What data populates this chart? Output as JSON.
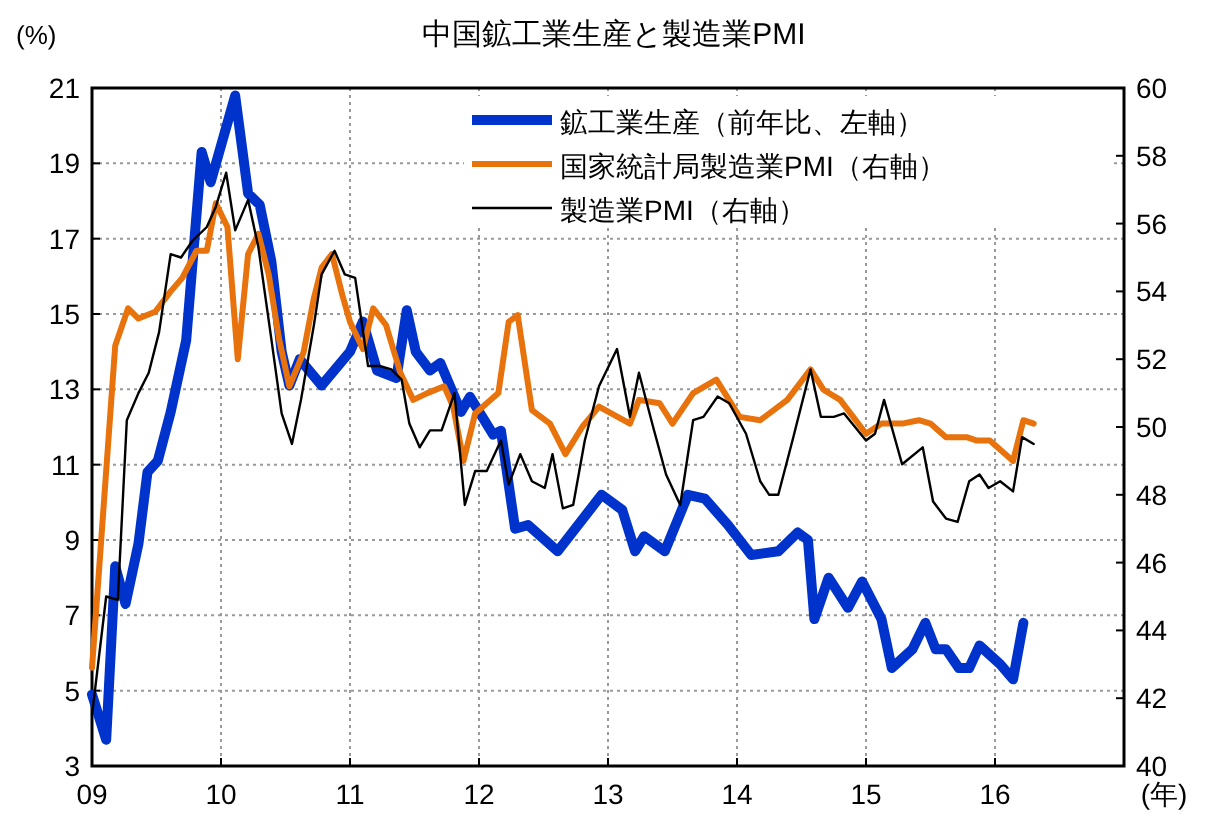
{
  "chart_data": {
    "type": "line",
    "title": "中国鉱工業生産と製造業PMI",
    "ylabel": "(%)",
    "xlabel": "(年)",
    "xlim": [
      2009,
      2017
    ],
    "xticks": [
      {
        "value": 2009,
        "label": "09"
      },
      {
        "value": 2010,
        "label": "10"
      },
      {
        "value": 2011,
        "label": "11"
      },
      {
        "value": 2012,
        "label": "12"
      },
      {
        "value": 2013,
        "label": "13"
      },
      {
        "value": 2014,
        "label": "14"
      },
      {
        "value": 2015,
        "label": "15"
      },
      {
        "value": 2016,
        "label": "16"
      }
    ],
    "ylim": [
      3,
      21
    ],
    "yticks": [
      3,
      5,
      7,
      9,
      11,
      13,
      15,
      17,
      19,
      21
    ],
    "y2lim": [
      40,
      60
    ],
    "y2ticks": [
      40,
      42,
      44,
      46,
      48,
      50,
      52,
      54,
      56,
      58,
      60
    ],
    "grid": true,
    "legend": "top right",
    "series": [
      {
        "name": "鉱工業生産（前年比、左軸）",
        "color": "#0033cc",
        "x": [
          2009.0,
          2009.11,
          2009.18,
          2009.26,
          2009.36,
          2009.43,
          2009.51,
          2009.61,
          2009.73,
          2009.85,
          2009.92,
          2010.11,
          2010.21,
          2010.3,
          2010.39,
          2010.47,
          2010.53,
          2010.61,
          2010.78,
          2011.0,
          2011.1,
          2011.21,
          2011.36,
          2011.44,
          2011.51,
          2011.62,
          2011.7,
          2011.86,
          2011.93,
          2012.11,
          2012.17,
          2012.28,
          2012.38,
          2012.61,
          2012.95,
          2013.11,
          2013.21,
          2013.28,
          2013.44,
          2013.62,
          2013.75,
          2013.93,
          2014.11,
          2014.32,
          2014.47,
          2014.55,
          2014.6,
          2014.71,
          2014.86,
          2014.97,
          2015.12,
          2015.2,
          2015.36,
          2015.46,
          2015.54,
          2015.62,
          2015.72,
          2015.8,
          2015.88,
          2016.04,
          2016.14,
          2016.22
        ],
        "values": [
          4.9,
          3.7,
          8.3,
          7.3,
          8.9,
          10.8,
          11.1,
          12.4,
          14.3,
          19.3,
          18.5,
          20.8,
          18.2,
          17.9,
          16.4,
          14.0,
          13.1,
          13.8,
          13.1,
          14.0,
          14.8,
          13.5,
          13.3,
          15.1,
          14.0,
          13.5,
          13.7,
          12.4,
          12.8,
          11.8,
          11.9,
          9.3,
          9.4,
          8.7,
          10.2,
          9.8,
          8.7,
          9.1,
          8.7,
          10.2,
          10.1,
          9.4,
          8.6,
          8.7,
          9.2,
          9.0,
          6.9,
          8.0,
          7.2,
          7.9,
          6.9,
          5.6,
          6.1,
          6.8,
          6.1,
          6.1,
          5.6,
          5.6,
          6.2,
          5.7,
          5.3,
          6.8
        ]
      },
      {
        "name": "国家統計局製造業PMI（右軸）",
        "color": "#e8720c",
        "axis": "y2",
        "x": [
          2009.0,
          2009.18,
          2009.28,
          2009.36,
          2009.49,
          2009.61,
          2009.7,
          2009.81,
          2009.89,
          2009.96,
          2010.05,
          2010.13,
          2010.21,
          2010.29,
          2010.37,
          2010.45,
          2010.53,
          2010.64,
          2010.72,
          2010.78,
          2010.86,
          2010.94,
          2011.0,
          2011.1,
          2011.18,
          2011.28,
          2011.39,
          2011.49,
          2011.6,
          2011.73,
          2011.8,
          2011.88,
          2011.97,
          2012.15,
          2012.23,
          2012.3,
          2012.41,
          2012.55,
          2012.67,
          2012.8,
          2012.93,
          2013.17,
          2013.24,
          2013.4,
          2013.5,
          2013.66,
          2013.84,
          2014.02,
          2014.18,
          2014.39,
          2014.57,
          2014.67,
          2014.8,
          2015.0,
          2015.12,
          2015.28,
          2015.41,
          2015.5,
          2015.62,
          2015.78,
          2015.86,
          2015.96,
          2016.14,
          2016.22,
          2016.3
        ],
        "values": [
          42.9,
          52.4,
          53.5,
          53.2,
          53.4,
          54.0,
          54.4,
          55.2,
          55.2,
          56.6,
          55.9,
          52.0,
          55.1,
          55.7,
          54.5,
          52.6,
          51.2,
          52.2,
          53.8,
          54.7,
          55.1,
          53.9,
          53.1,
          52.3,
          53.5,
          53.0,
          51.6,
          50.8,
          51.0,
          51.2,
          50.6,
          49.0,
          50.4,
          51.0,
          53.1,
          53.3,
          50.5,
          50.1,
          49.2,
          50.0,
          50.6,
          50.1,
          50.8,
          50.7,
          50.1,
          51.0,
          51.4,
          50.3,
          50.2,
          50.8,
          51.7,
          51.1,
          50.8,
          49.8,
          50.1,
          50.1,
          50.2,
          50.1,
          49.7,
          49.7,
          49.6,
          49.6,
          49.0,
          50.2,
          50.1
        ]
      },
      {
        "name": "製造業PMI（右軸）",
        "color": "#000000",
        "axis": "y2",
        "x": [
          2009.0,
          2009.11,
          2009.2,
          2009.27,
          2009.36,
          2009.44,
          2009.52,
          2009.61,
          2009.69,
          2009.78,
          2009.89,
          2009.96,
          2010.04,
          2010.11,
          2010.21,
          2010.29,
          2010.39,
          2010.47,
          2010.55,
          2010.62,
          2010.72,
          2010.78,
          2010.88,
          2010.96,
          2011.04,
          2011.14,
          2011.23,
          2011.32,
          2011.4,
          2011.46,
          2011.54,
          2011.62,
          2011.71,
          2011.81,
          2011.89,
          2011.97,
          2012.06,
          2012.17,
          2012.23,
          2012.32,
          2012.41,
          2012.51,
          2012.57,
          2012.65,
          2012.73,
          2012.82,
          2012.93,
          2013.07,
          2013.17,
          2013.24,
          2013.35,
          2013.45,
          2013.56,
          2013.66,
          2013.74,
          2013.85,
          2013.94,
          2014.07,
          2014.18,
          2014.25,
          2014.32,
          2014.43,
          2014.57,
          2014.65,
          2014.75,
          2014.83,
          2015.0,
          2015.07,
          2015.14,
          2015.28,
          2015.44,
          2015.52,
          2015.62,
          2015.71,
          2015.8,
          2015.88,
          2015.95,
          2016.04,
          2016.14,
          2016.21,
          2016.3
        ],
        "values": [
          41.5,
          45.0,
          44.9,
          50.2,
          51.0,
          51.6,
          52.8,
          55.1,
          55.0,
          55.5,
          55.9,
          56.5,
          57.5,
          55.8,
          56.7,
          55.3,
          52.6,
          50.4,
          49.5,
          50.8,
          53.0,
          54.5,
          55.2,
          54.5,
          54.4,
          51.8,
          51.8,
          51.7,
          51.4,
          50.1,
          49.4,
          49.9,
          49.9,
          51.0,
          47.7,
          48.7,
          48.7,
          49.6,
          48.3,
          49.2,
          48.4,
          48.2,
          49.2,
          47.6,
          47.7,
          49.6,
          51.2,
          52.3,
          50.3,
          51.6,
          50.0,
          48.6,
          47.7,
          50.2,
          50.3,
          50.9,
          50.7,
          49.8,
          48.4,
          48.0,
          48.0,
          49.6,
          51.7,
          50.3,
          50.3,
          50.4,
          49.6,
          49.8,
          50.8,
          48.9,
          49.4,
          47.8,
          47.3,
          47.2,
          48.4,
          48.6,
          48.2,
          48.4,
          48.1,
          49.7,
          49.5
        ]
      }
    ]
  }
}
